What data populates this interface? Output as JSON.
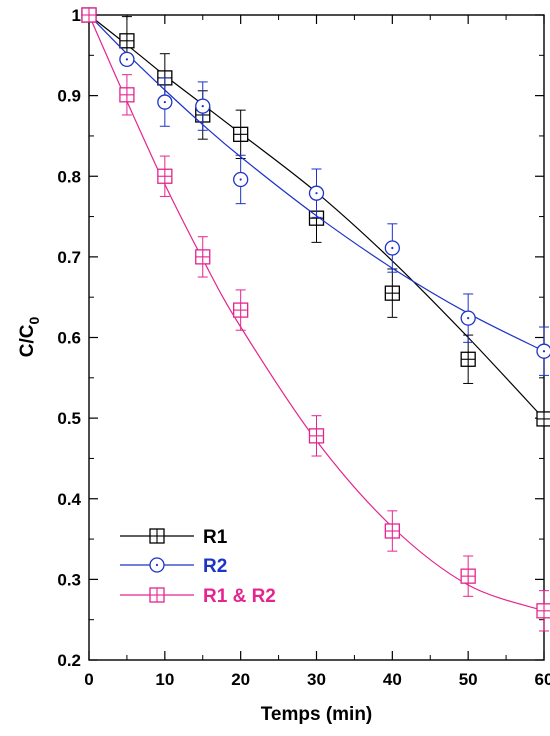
{
  "chart_data": {
    "type": "line",
    "xlabel": "Temps (min)",
    "ylabel_main": "C/C",
    "ylabel_sub": "0",
    "xlim": [
      0,
      60
    ],
    "ylim": [
      0.2,
      1.0
    ],
    "xticks": [
      0,
      10,
      20,
      30,
      40,
      50,
      60
    ],
    "yticks": [
      0.2,
      0.3,
      0.4,
      0.5,
      0.6,
      0.7,
      0.8,
      0.9,
      1
    ],
    "grid": false,
    "legend_position": "bottom-left",
    "series": [
      {
        "name": "R1",
        "color": "#000000",
        "marker": "square-cross",
        "x": [
          0,
          5,
          10,
          15,
          20,
          30,
          40,
          50,
          60
        ],
        "y": [
          1.0,
          0.968,
          0.922,
          0.876,
          0.852,
          0.748,
          0.655,
          0.573,
          0.499
        ],
        "err": [
          0,
          0.03,
          0.03,
          0.03,
          0.03,
          0.03,
          0.03,
          0.03,
          0.0
        ],
        "fit": [
          1.0,
          0.963,
          0.925,
          0.889,
          0.853,
          0.78,
          0.695,
          0.6,
          0.499
        ]
      },
      {
        "name": "R2",
        "color": "#1c33c7",
        "marker": "circle-dot",
        "x": [
          0,
          5,
          10,
          15,
          20,
          30,
          40,
          50,
          60
        ],
        "y": [
          1.0,
          0.945,
          0.892,
          0.887,
          0.796,
          0.779,
          0.711,
          0.624,
          0.583
        ],
        "err": [
          0,
          0.0,
          0.03,
          0.03,
          0.03,
          0.03,
          0.03,
          0.03,
          0.03
        ],
        "fit": [
          1.0,
          0.952,
          0.907,
          0.864,
          0.824,
          0.751,
          0.686,
          0.63,
          0.583
        ]
      },
      {
        "name": "R1 & R2",
        "color": "#e5248f",
        "marker": "square-cross",
        "x": [
          0,
          5,
          10,
          15,
          20,
          30,
          40,
          50,
          60
        ],
        "y": [
          1.0,
          0.901,
          0.8,
          0.7,
          0.634,
          0.478,
          0.36,
          0.304,
          0.261
        ],
        "err": [
          0,
          0.025,
          0.025,
          0.025,
          0.025,
          0.025,
          0.025,
          0.025,
          0.025
        ],
        "fit": [
          1.0,
          0.893,
          0.79,
          0.697,
          0.613,
          0.472,
          0.365,
          0.293,
          0.261
        ]
      }
    ]
  }
}
